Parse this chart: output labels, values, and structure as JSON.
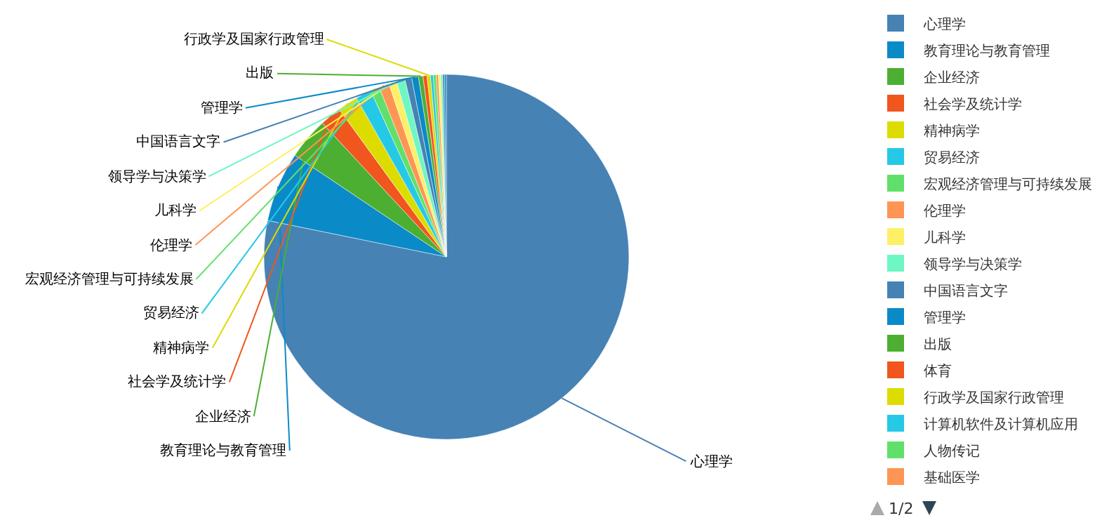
{
  "chart_data": {
    "type": "pie",
    "categories": [
      "心理学",
      "教育理论与教育管理",
      "企业经济",
      "社会学及统计学",
      "精神病学",
      "贸易经济",
      "宏观经济管理与可持续发展",
      "伦理学",
      "儿科学",
      "领导学与决策学",
      "中国语言文字",
      "管理学",
      "出版",
      "体育",
      "行政学及国家行政管理",
      "计算机软件及计算机应用",
      "人物传记",
      "基础医学",
      null,
      null,
      null,
      null
    ],
    "values": [
      78.2,
      6.2,
      3.7,
      1.9,
      1.8,
      1.4,
      0.8,
      0.9,
      0.7,
      0.75,
      0.6,
      0.6,
      0.4,
      0.35,
      0.3,
      0.25,
      0.25,
      0.2,
      0.2,
      0.18,
      0.17,
      0.15
    ],
    "colors": [
      "#4682b4",
      "#0b8ac8",
      "#4caf32",
      "#f0561d",
      "#dcdc00",
      "#26c9e5",
      "#60e06a",
      "#fe9554",
      "#fef066",
      "#6ef7c4",
      "#4682b4",
      "#0b8ac8",
      "#4caf32",
      "#f0561d",
      "#dcdc00",
      "#26c9e5",
      "#60e06a",
      "#fe9554",
      "#fef066",
      "#6ef7c4",
      "#4682b4",
      "#0b8ac8"
    ],
    "value_labels": [
      "心理学",
      "教育理论与教育管理",
      "企业经济",
      "社会学及统计学",
      "精神病学",
      "贸易经济",
      "宏观经济管理与可持续发展",
      "伦理学",
      "儿科学",
      "领导学与决策学",
      "中国语言文字",
      "管理学",
      "出版",
      null,
      "行政学及国家行政管理",
      null,
      null,
      null,
      null,
      null,
      null,
      null
    ],
    "legend": "right",
    "annotations": [
      "1/2"
    ]
  }
}
